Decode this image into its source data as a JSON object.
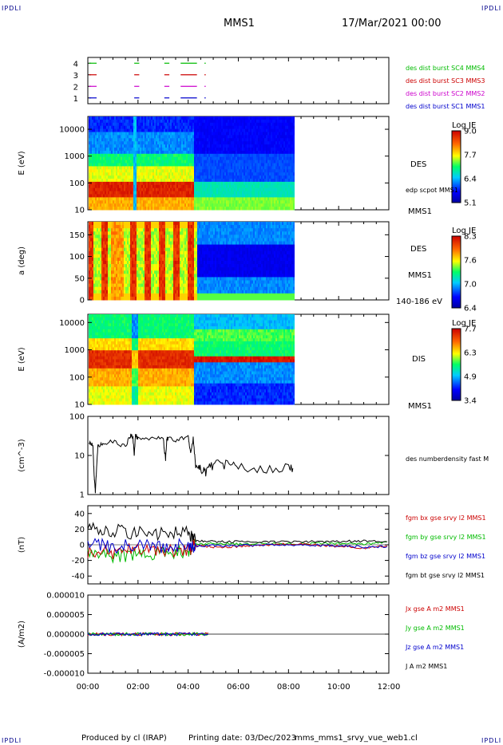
{
  "header": {
    "corner_tl": "IPDLI",
    "corner_tr": "IPDLI",
    "corner_bl": "IPDLI",
    "corner_br": "IPDLI",
    "title": "MMS1",
    "date": "17/Mar/2021 00:00"
  },
  "footer": {
    "produced": "Produced by cl (IRAP)",
    "printing": "Printing date: 03/Dec/2023",
    "filename": "mms_mms1_srvy_vue_web1.cl"
  },
  "colors": {
    "blue": "#0000cc",
    "magenta": "#cc00cc",
    "red": "#cc0000",
    "green": "#00bb00",
    "black": "#000000"
  },
  "chart_data": [
    {
      "type": "line",
      "name_label": "burst-availability",
      "ylim": [
        0.5,
        4.5
      ],
      "yticks": [
        "1",
        "2",
        "3",
        "4"
      ],
      "xlim_hours": [
        0,
        12
      ],
      "legend": [
        {
          "label": "des dist burst SC1 MMS1",
          "color": "#0000cc",
          "level": 1
        },
        {
          "label": "des dist burst SC2 MMS2",
          "color": "#cc00cc",
          "level": 2
        },
        {
          "label": "des dist burst SC3 MMS3",
          "color": "#cc0000",
          "level": 3
        },
        {
          "label": "des dist burst SC4 MMS4",
          "color": "#00bb00",
          "level": 4
        }
      ],
      "intervals_hours": [
        [
          0.05,
          0.35
        ],
        [
          1.85,
          2.05
        ],
        [
          3.05,
          3.25
        ],
        [
          3.7,
          4.35
        ],
        [
          4.65,
          4.7
        ]
      ]
    },
    {
      "type": "heatmap",
      "name_label": "des-energy-spectrogram",
      "ylabel": "E (eV)",
      "yscale": "log",
      "ylim": [
        10,
        30000
      ],
      "yticks": [
        "10",
        "100",
        "1000",
        "10000"
      ],
      "labels": [
        "DES",
        "edp scpot MMS1",
        "MMS1"
      ],
      "colorbar": {
        "title": "Log JE",
        "ticks": [
          "9.0",
          "7.7",
          "6.4",
          "5.1"
        ]
      }
    },
    {
      "type": "heatmap",
      "name_label": "des-pitch-angle",
      "ylabel": "a (deg)",
      "ylim": [
        0,
        180
      ],
      "yticks": [
        "0",
        "50",
        "100",
        "150"
      ],
      "labels": [
        "DES",
        "MMS1",
        "140-186 eV"
      ],
      "colorbar": {
        "title": "Log JE",
        "ticks": [
          "8.3",
          "7.6",
          "7.0",
          "6.4"
        ]
      }
    },
    {
      "type": "heatmap",
      "name_label": "dis-energy-spectrogram",
      "ylabel": "E (eV)",
      "yscale": "log",
      "ylim": [
        10,
        20000
      ],
      "yticks": [
        "10",
        "100",
        "1000",
        "10000"
      ],
      "labels": [
        "DIS",
        "MMS1"
      ],
      "colorbar": {
        "title": "Log JE",
        "ticks": [
          "7.7",
          "6.3",
          "4.9",
          "3.4"
        ]
      }
    },
    {
      "type": "line",
      "name_label": "density",
      "ylabel": "(cm^-3)",
      "yscale": "log",
      "ylim": [
        1,
        100
      ],
      "yticks": [
        "1",
        "10",
        "100"
      ],
      "series": [
        {
          "name": "des numberdensity fast M",
          "color": "#000000",
          "x": [
            0.05,
            0.2,
            0.25,
            0.3,
            0.4,
            0.6,
            1.0,
            1.5,
            1.7,
            1.8,
            1.85,
            1.9,
            2.0,
            2.5,
            3.0,
            3.1,
            3.15,
            3.2,
            3.5,
            4.0,
            4.1,
            4.2,
            4.3,
            4.5,
            4.7,
            5.0,
            5.5,
            6.0,
            7.0,
            8.0,
            8.2
          ],
          "values": [
            22,
            20,
            3,
            1.2,
            18,
            20,
            23,
            17,
            33,
            30,
            10,
            33,
            28,
            27,
            29,
            8,
            27,
            28,
            25,
            30,
            12,
            28,
            5,
            5,
            4,
            6,
            6,
            5,
            5,
            5,
            4
          ]
        }
      ]
    },
    {
      "type": "line",
      "name_label": "magnetic-field",
      "ylabel": "(nT)",
      "ylim": [
        -50,
        50
      ],
      "yticks": [
        "-40",
        "-20",
        "0",
        "20",
        "40"
      ],
      "series": [
        {
          "name": "fgm bx gse srvy l2 MMS1",
          "color": "#cc0000",
          "x": [
            0,
            1,
            2,
            3,
            4,
            4.3,
            5,
            6,
            7,
            8,
            9,
            10,
            11,
            12
          ],
          "values": [
            -8,
            -10,
            -5,
            -7,
            -6,
            0,
            -3,
            -2,
            0,
            1,
            0,
            -2,
            -4,
            -1
          ]
        },
        {
          "name": "fgm by gse srvy l2 MMS1",
          "color": "#00bb00",
          "x": [
            0,
            1,
            2,
            3,
            4,
            4.3,
            5,
            6,
            7,
            8,
            9,
            10,
            11,
            12
          ],
          "values": [
            -12,
            -15,
            -12,
            -10,
            -8,
            0,
            2,
            1,
            2,
            1,
            2,
            2,
            1,
            3
          ]
        },
        {
          "name": "fgm bz gse srvy l2 MMS1",
          "color": "#0000cc",
          "x": [
            0,
            1,
            2,
            3,
            4,
            4.3,
            5,
            6,
            7,
            8,
            9,
            10,
            11,
            12
          ],
          "values": [
            2,
            -3,
            0,
            -2,
            1,
            -2,
            -1,
            -1,
            0,
            0,
            -1,
            -1,
            -3,
            -2
          ]
        },
        {
          "name": "fgm bt gse srvy l2 MMS1",
          "color": "#000000",
          "x": [
            0,
            1,
            2,
            3,
            4,
            4.3,
            5,
            6,
            7,
            8,
            9,
            10,
            11,
            12
          ],
          "values": [
            22,
            18,
            15,
            14,
            15,
            5,
            4,
            4,
            4,
            4,
            4,
            4,
            5,
            5
          ]
        }
      ]
    },
    {
      "type": "line",
      "name_label": "current-density",
      "ylabel": "(A/m2)",
      "ylim": [
        -1e-05,
        1e-05
      ],
      "yticks": [
        "-0.000010",
        "-0.000005",
        "0.000000",
        "0.000005",
        "0.000010"
      ],
      "xticks": [
        "00:00",
        "02:00",
        "04:00",
        "06:00",
        "08:00",
        "10:00",
        "12:00"
      ],
      "series": [
        {
          "name": "Jx gse A m2 MMS1",
          "color": "#cc0000"
        },
        {
          "name": "Jy gse A m2 MMS1",
          "color": "#00bb00"
        },
        {
          "name": "Jz gse A m2 MMS1",
          "color": "#0000cc"
        },
        {
          "name": "J A m2 MMS1",
          "color": "#000000"
        }
      ]
    }
  ]
}
